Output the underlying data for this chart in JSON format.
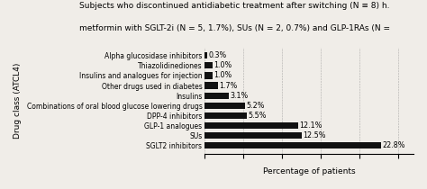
{
  "title_line1": "Subjects who discontinued antidiabetic treatment after switching (N ≡ 8) h.",
  "title_line2": "metformin with SGLT-2i (N = 5, 1.7%), SUs (N = 2, 0.7%) and GLP-1RAs (N =",
  "categories": [
    "SGLT2 inhibitors",
    "SUs",
    "GLP-1 analogues",
    "DPP-4 inhibitors",
    "Combinations of oral blood glucose lowering drugs",
    "Insulins",
    "Other drugs used in diabetes",
    "Insulins and analogues for injection",
    "Thiazolidinediones",
    "Alpha glucosidase inhibitors"
  ],
  "values": [
    22.8,
    12.5,
    12.1,
    5.5,
    5.2,
    3.1,
    1.7,
    1.0,
    1.0,
    0.3
  ],
  "labels": [
    "22.8%",
    "12.5%",
    "12.1%",
    "5.5%",
    "5.2%",
    "3.1%",
    "1.7%",
    "1.0%",
    "1.0%",
    "0.3%"
  ],
  "bar_color": "#111111",
  "xlabel": "Percentage of patients",
  "ylabel": "Drug class (ATCL4)",
  "xlim": [
    0,
    27
  ],
  "background_color": "#f0ede8",
  "title_fontsize": 6.5,
  "label_fontsize": 5.8,
  "tick_fontsize": 5.5,
  "xlabel_fontsize": 6.5,
  "ylabel_fontsize": 6.5
}
